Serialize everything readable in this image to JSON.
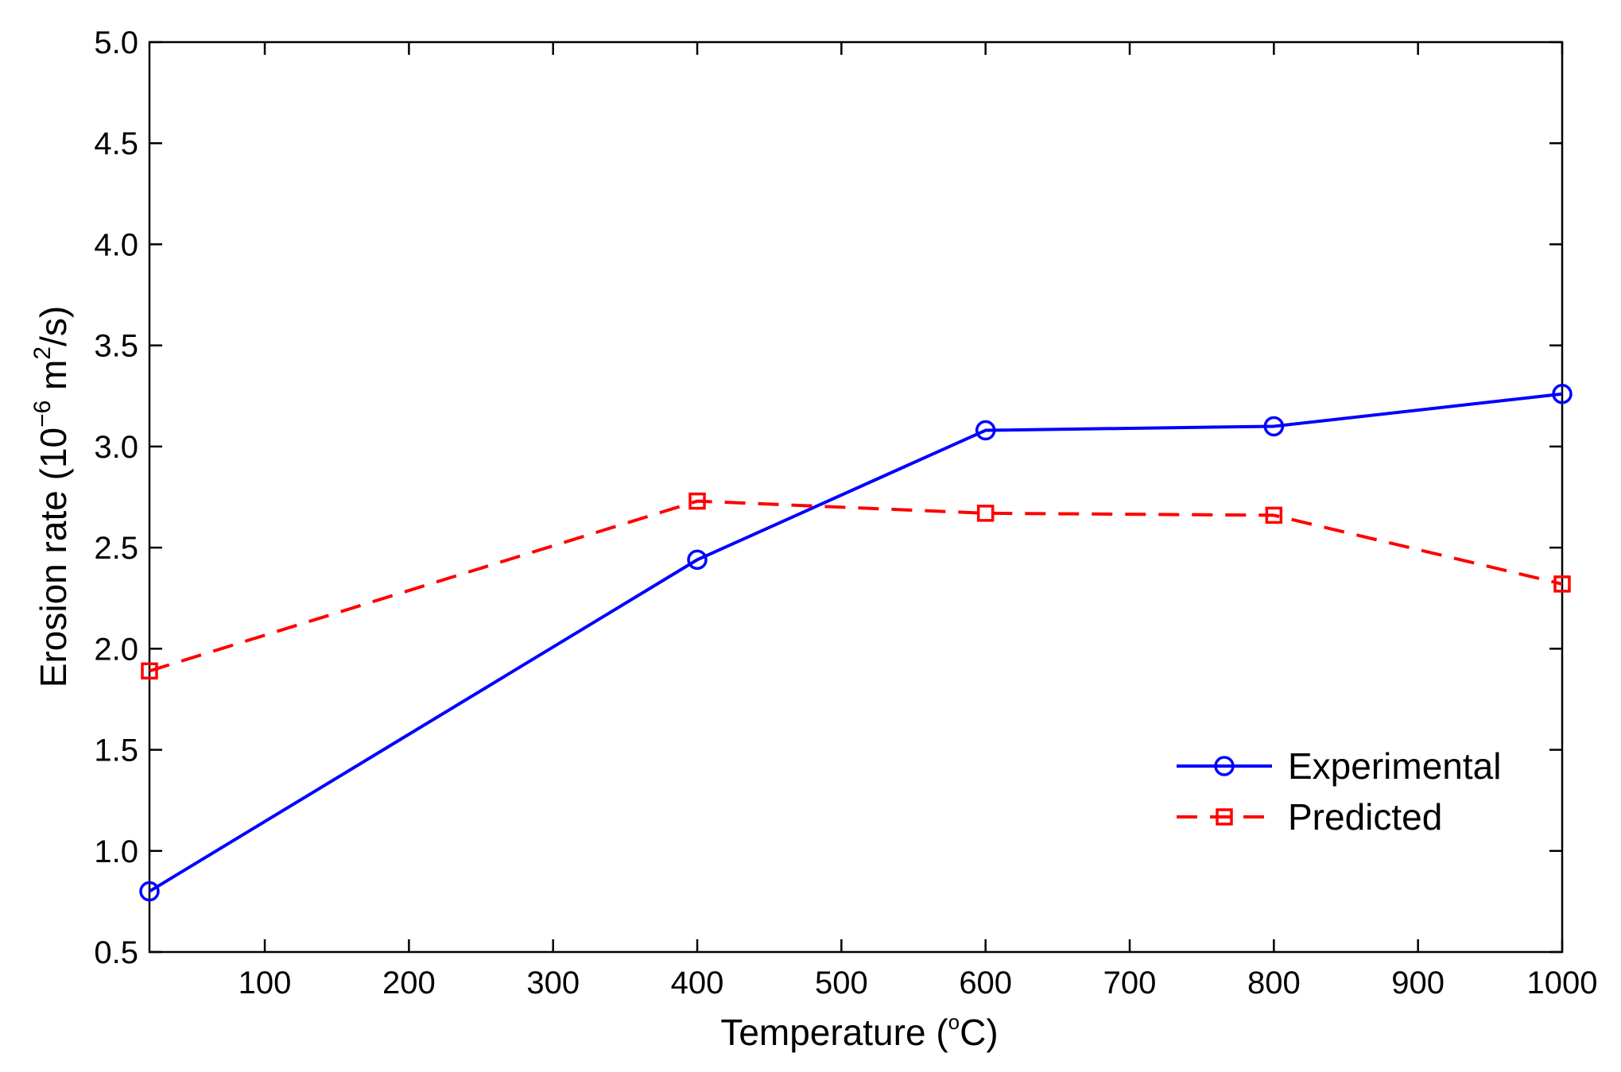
{
  "chart_data": {
    "type": "line",
    "title": "",
    "xlabel": "Temperature (°C)",
    "xlabel_parts": {
      "main": "Temperature (",
      "degree": "o",
      "unit": "C)"
    },
    "ylabel": "Erosion rate (10^-6 m^2/s)",
    "ylabel_parts": {
      "main": "Erosion rate (10",
      "exp1": "−6",
      "mid": " m",
      "exp2": "2",
      "end": "/s)"
    },
    "xlim": [
      20,
      1000
    ],
    "ylim": [
      0.5,
      5.0
    ],
    "xticks": [
      100,
      200,
      300,
      400,
      500,
      600,
      700,
      800,
      900,
      1000
    ],
    "yticks": [
      0.5,
      1.0,
      1.5,
      2.0,
      2.5,
      3.0,
      3.5,
      4.0,
      4.5,
      5.0
    ],
    "ytick_labels": [
      "0.5",
      "1.0",
      "1.5",
      "2.0",
      "2.5",
      "3.0",
      "3.5",
      "4.0",
      "4.5",
      "5.0"
    ],
    "grid": false,
    "legend_position": "bottom-right",
    "series": [
      {
        "name": "Experimental",
        "color": "#0000ff",
        "line_style": "solid",
        "marker": "circle",
        "x": [
          20,
          400,
          600,
          800,
          1000
        ],
        "y": [
          0.8,
          2.44,
          3.08,
          3.1,
          3.26
        ]
      },
      {
        "name": "Predicted",
        "color": "#ff0000",
        "line_style": "dashed",
        "marker": "square",
        "x": [
          20,
          400,
          600,
          800,
          1000
        ],
        "y": [
          1.89,
          2.73,
          2.67,
          2.66,
          2.32
        ]
      }
    ]
  }
}
